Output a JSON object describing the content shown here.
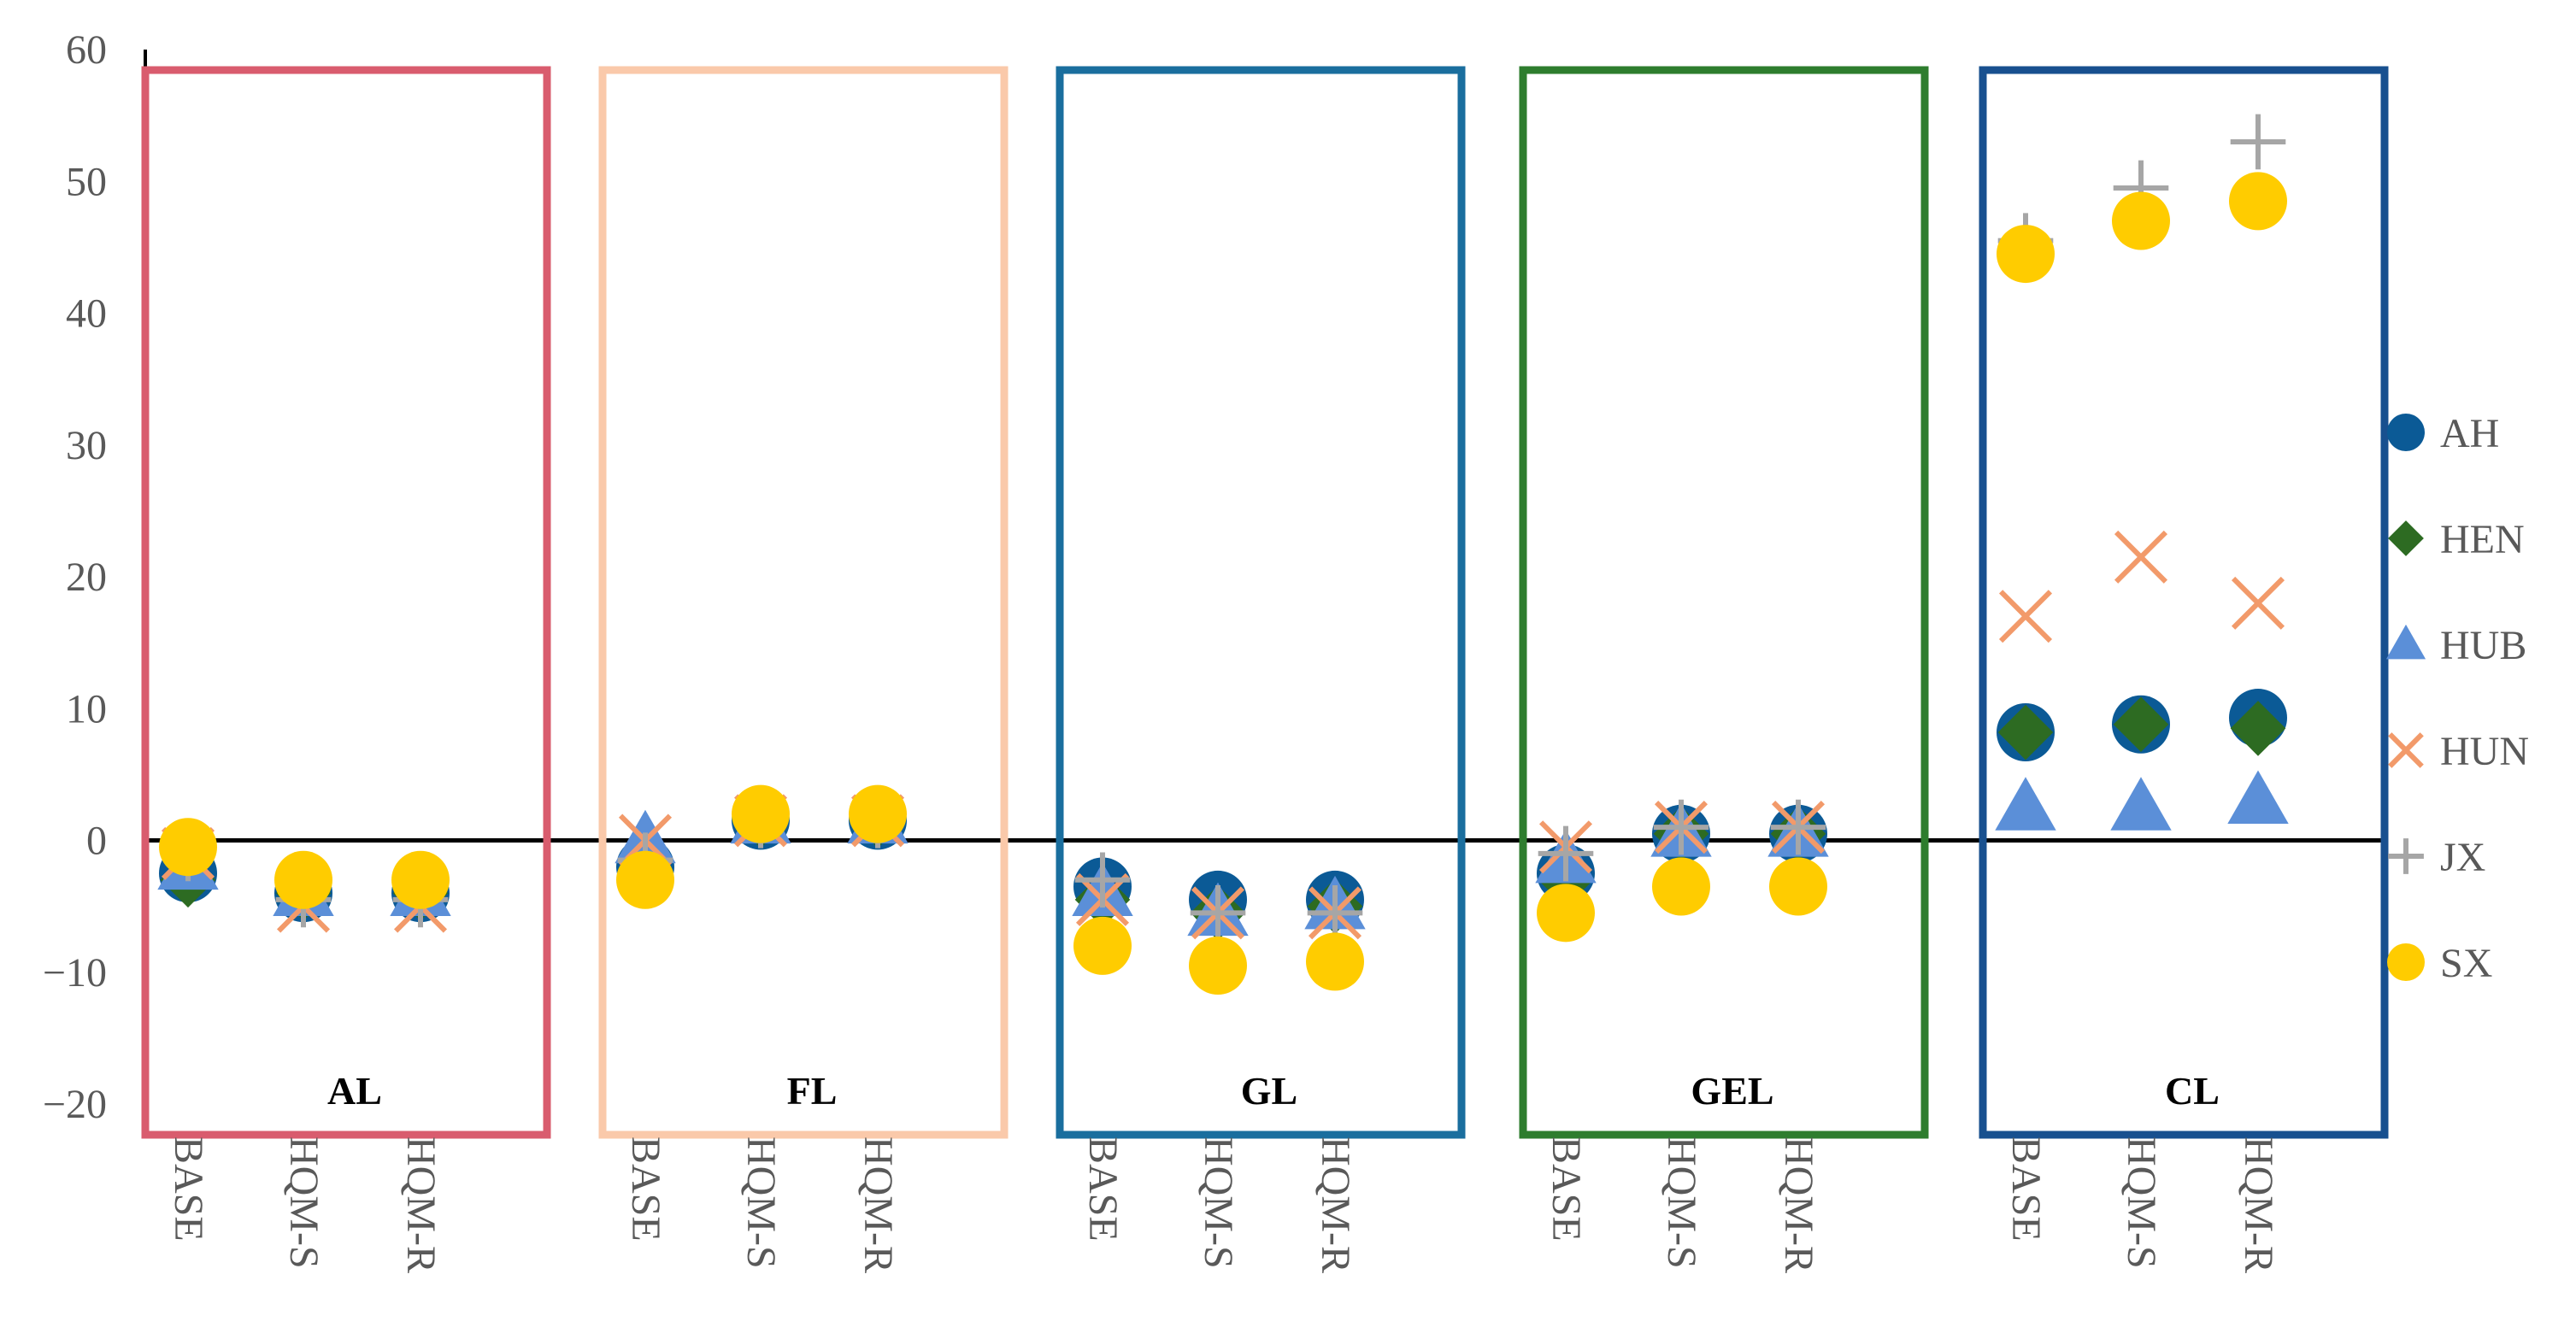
{
  "chart_data": {
    "type": "scatter",
    "title": "",
    "xlabel": "",
    "ylabel": "",
    "ylim": [
      -20,
      60
    ],
    "yticks": [
      60,
      50,
      40,
      30,
      20,
      10,
      0,
      -10,
      -20
    ],
    "scenarios": [
      "BASE",
      "HQM-S",
      "HQM-R"
    ],
    "groups": [
      {
        "label": "AL",
        "color": "#D95C6E"
      },
      {
        "label": "FL",
        "color": "#FAC9AA"
      },
      {
        "label": "GL",
        "color": "#1A6E9E"
      },
      {
        "label": "GEL",
        "color": "#2E7D2E"
      },
      {
        "label": "CL",
        "color": "#18508F"
      }
    ],
    "series": [
      {
        "name": "AH",
        "marker": "circle",
        "color": "#0B5A96",
        "values": [
          -2.5,
          -4.0,
          -4.0,
          -2.0,
          1.5,
          1.5,
          -3.5,
          -4.5,
          -4.5,
          -2.5,
          0.5,
          0.5,
          8.2,
          8.8,
          9.3
        ]
      },
      {
        "name": "HEN",
        "marker": "diamond",
        "color": "#2D6B22",
        "values": [
          -3.0,
          -4.0,
          -4.0,
          -2.5,
          1.5,
          1.5,
          -4.5,
          -5.5,
          -5.0,
          -3.0,
          0.5,
          0.5,
          8.2,
          8.8,
          8.5
        ]
      },
      {
        "name": "HUB",
        "marker": "triangle",
        "color": "#5B8FD8",
        "values": [
          -2.0,
          -4.0,
          -4.0,
          0.0,
          1.5,
          1.5,
          -4.0,
          -5.5,
          -5.0,
          -1.5,
          0.5,
          0.5,
          2.5,
          2.5,
          3.0
        ]
      },
      {
        "name": "HUN",
        "marker": "x",
        "color": "#F29A6A",
        "values": [
          -1.0,
          -5.0,
          -5.0,
          0.0,
          1.5,
          1.5,
          -4.5,
          -5.5,
          -5.5,
          -0.5,
          1.0,
          1.0,
          17.0,
          21.5,
          18.0
        ]
      },
      {
        "name": "JX",
        "marker": "plus",
        "color": "#A6A6A6",
        "values": [
          -1.0,
          -4.5,
          -4.5,
          -1.5,
          1.5,
          1.5,
          -3.0,
          -5.5,
          -5.5,
          -1.0,
          1.0,
          1.0,
          45.5,
          49.5,
          53.0
        ]
      },
      {
        "name": "SX",
        "marker": "circle",
        "color": "#FFCC00",
        "values": [
          -0.5,
          -3.0,
          -3.0,
          -3.0,
          2.0,
          2.0,
          -8.0,
          -9.5,
          -9.2,
          -5.5,
          -3.5,
          -3.5,
          44.5,
          47.0,
          48.5
        ]
      }
    ]
  }
}
